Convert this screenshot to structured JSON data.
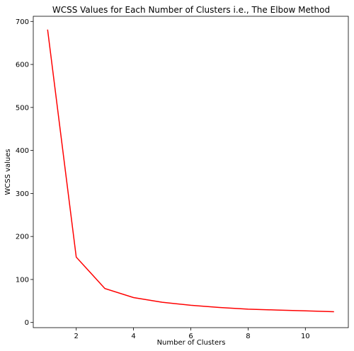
{
  "chart_data": {
    "type": "line",
    "title": "WCSS Values for Each Number of Clusters i.e., The Elbow Method",
    "xlabel": "Number of Clusters",
    "ylabel": "WCSS values",
    "xlim": [
      0.5,
      11.5
    ],
    "ylim": [
      -12,
      712
    ],
    "xticks": [
      2,
      4,
      6,
      8,
      10
    ],
    "yticks": [
      0,
      100,
      200,
      300,
      400,
      500,
      600,
      700
    ],
    "grid": false,
    "series": [
      {
        "color": "#ff0000",
        "x": [
          1,
          2,
          3,
          4,
          5,
          6,
          7,
          8,
          9,
          10,
          11
        ],
        "values": [
          681,
          152,
          79,
          58,
          47,
          40,
          35,
          31,
          29,
          27,
          25
        ]
      }
    ]
  }
}
